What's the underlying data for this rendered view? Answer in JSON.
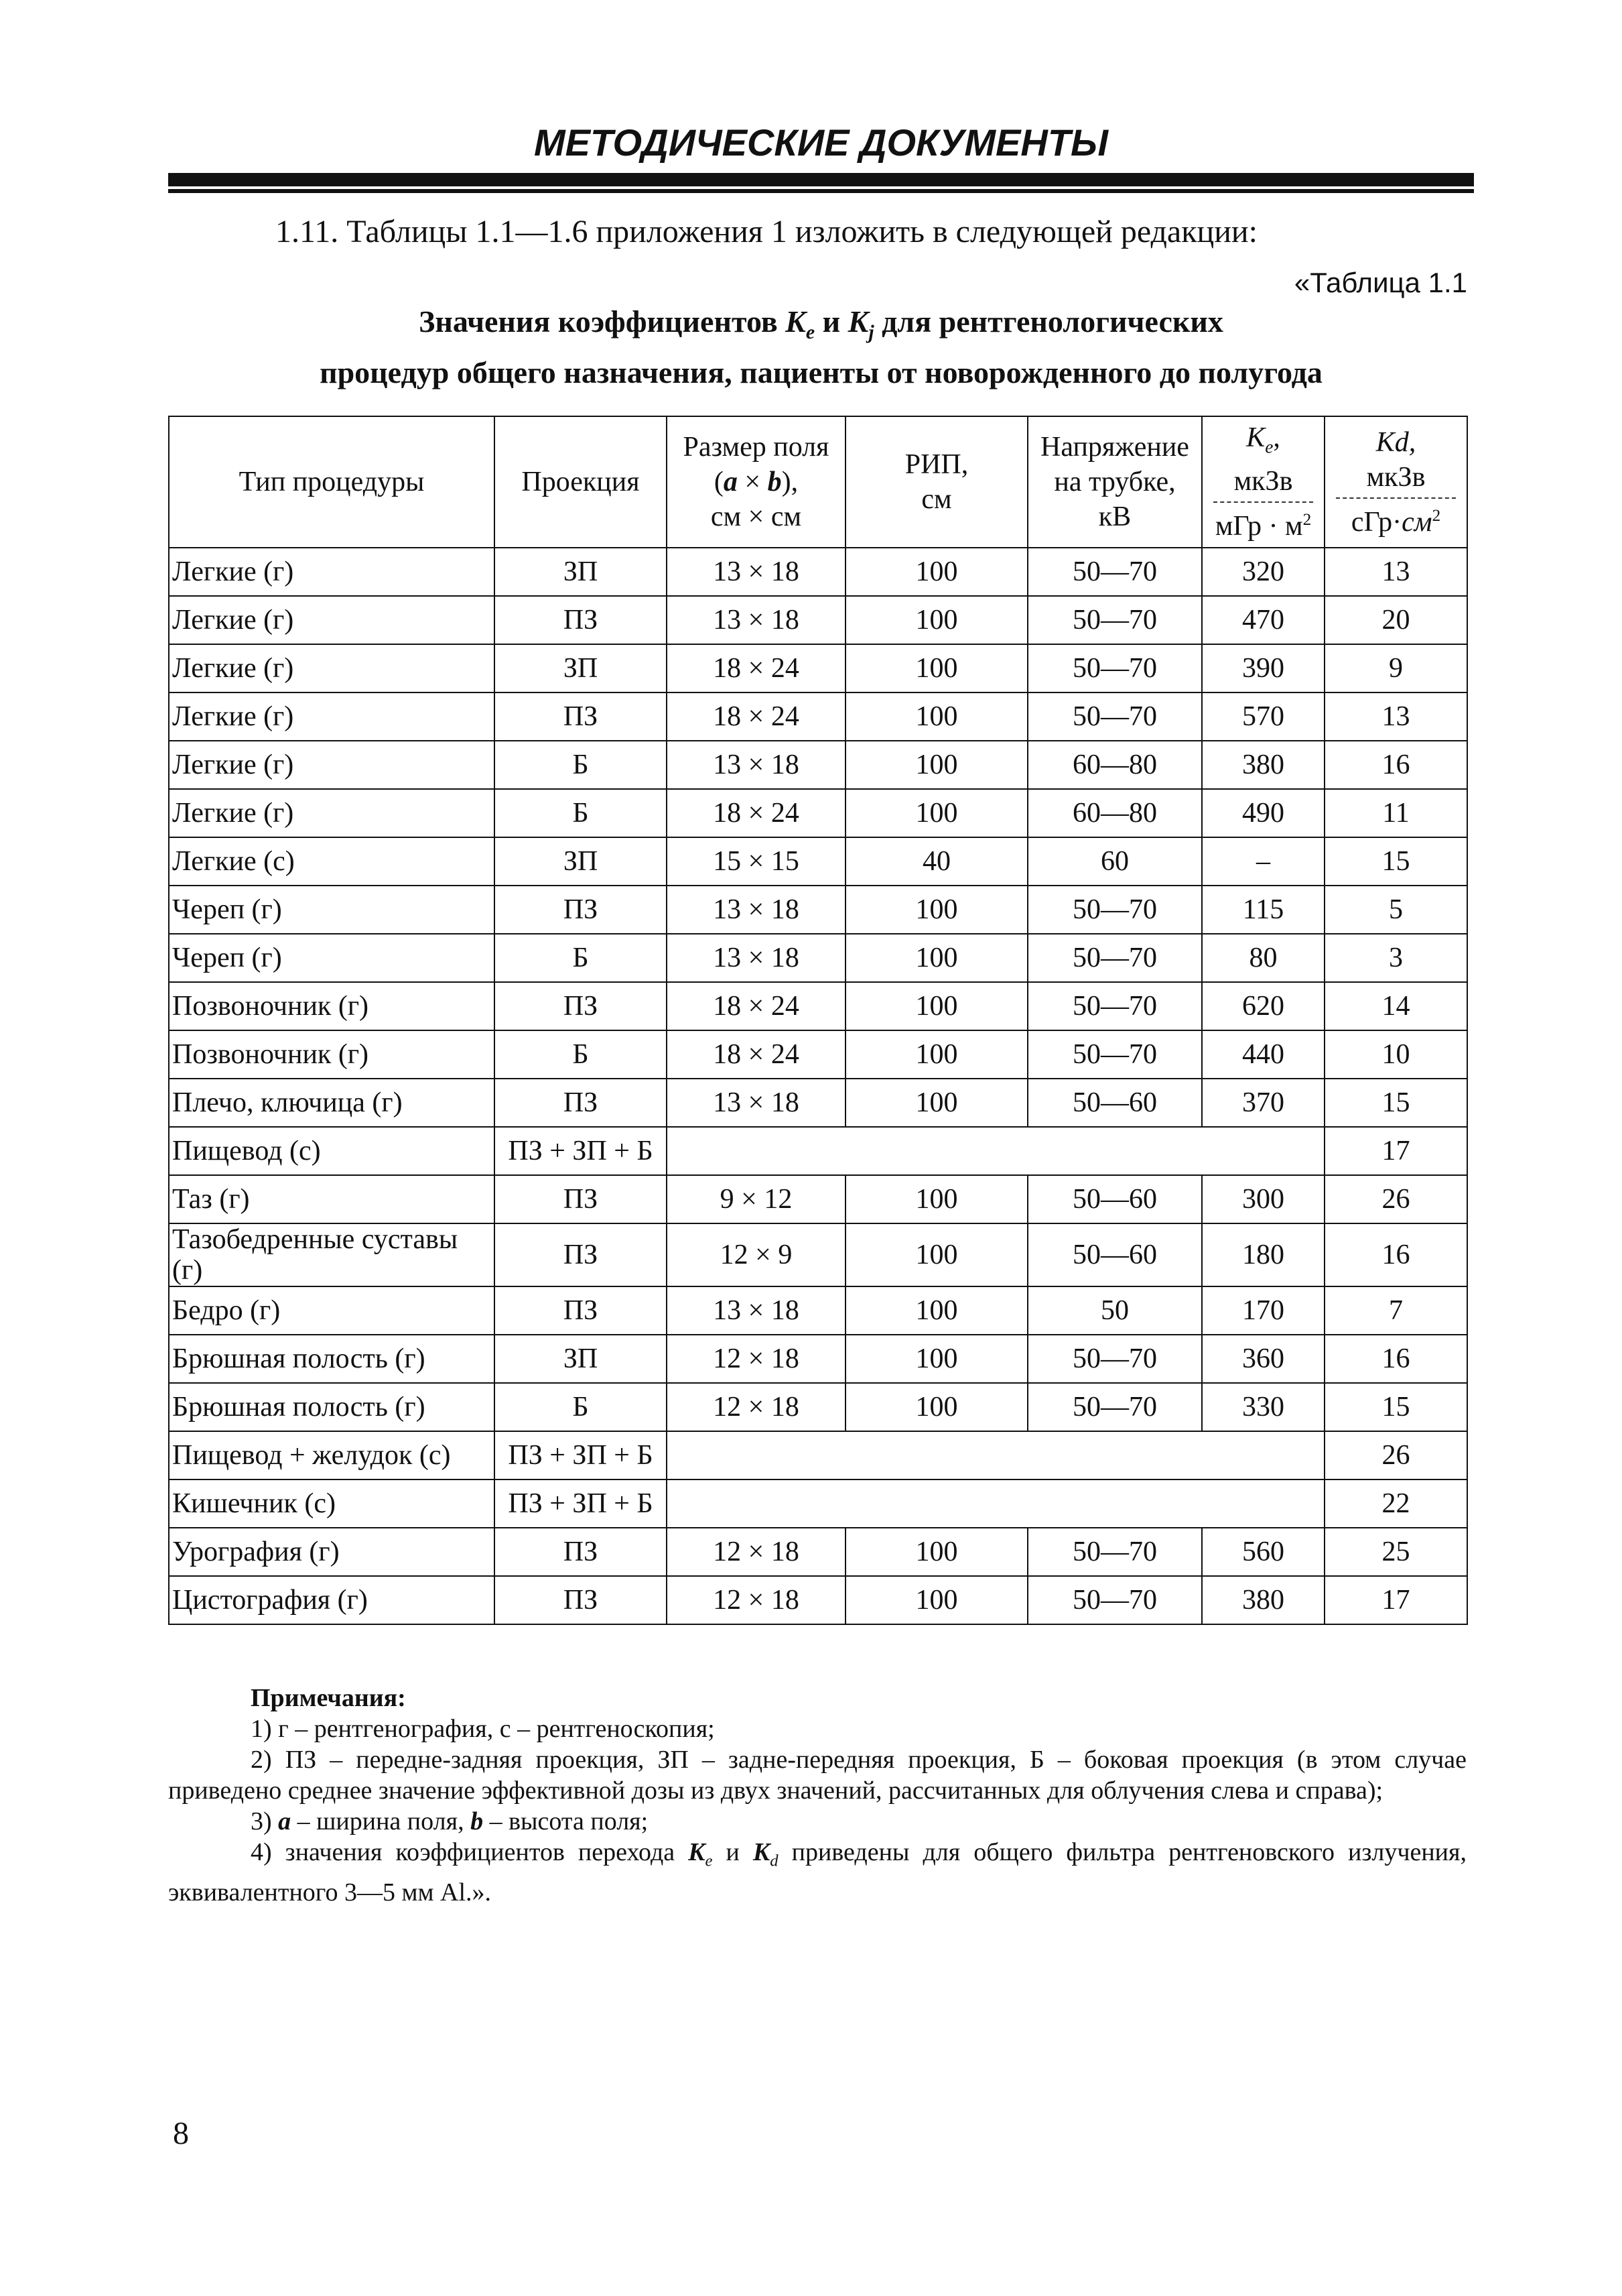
{
  "header": {
    "title": "МЕТОДИЧЕСКИЕ ДОКУМЕНТЫ"
  },
  "intro": "1.11. Таблицы 1.1—1.6 приложения 1 изложить в следующей редакции:",
  "table_label": "«Таблица 1.1",
  "table_title": [
    [
      "Значения коэффициентов ",
      {
        "t": "K",
        "s": "bi"
      },
      {
        "t": "e",
        "s": "sub"
      },
      " и ",
      {
        "t": "K",
        "s": "bi"
      },
      {
        "t": "j",
        "s": "sub"
      },
      " для рентгенологических"
    ],
    [
      "процедур общего назначения, пациенты от новорожденного до полугода"
    ]
  ],
  "table": {
    "columns": [
      {
        "lines": [
          [
            "Тип процедуры"
          ]
        ]
      },
      {
        "lines": [
          [
            "Проекция"
          ]
        ]
      },
      {
        "lines": [
          [
            "Размер поля"
          ],
          [
            "(",
            {
              "t": "a",
              "s": "bi"
            },
            " × ",
            {
              "t": "b",
              "s": "bi"
            },
            "),"
          ],
          [
            "см × см"
          ]
        ]
      },
      {
        "lines": [
          [
            "РИП,"
          ],
          [
            "см"
          ]
        ]
      },
      {
        "lines": [
          [
            "Напряжение"
          ],
          [
            "на трубке,"
          ],
          [
            "кВ"
          ]
        ]
      },
      {
        "lines": [
          [
            {
              "t": "K",
              "s": "i"
            },
            {
              "t": "e",
              "s": "sub"
            },
            ","
          ],
          [
            "мкЗв"
          ]
        ],
        "denominator": [
          "мГр · м",
          {
            "t": "2",
            "s": "sup"
          }
        ]
      },
      {
        "lines": [
          [
            {
              "t": "Kd,",
              "s": "i"
            }
          ],
          [
            "мкЗв"
          ]
        ],
        "denominator": [
          "сГр·",
          {
            "t": "см",
            "s": "i"
          },
          {
            "t": "2",
            "s": "sup"
          }
        ]
      }
    ],
    "rows": [
      [
        "Легкие (г)",
        "ЗП",
        "13 × 18",
        "100",
        "50—70",
        "320",
        "13"
      ],
      [
        "Легкие (г)",
        "ПЗ",
        "13 × 18",
        "100",
        "50—70",
        "470",
        "20"
      ],
      [
        "Легкие (г)",
        "ЗП",
        "18 × 24",
        "100",
        "50—70",
        "390",
        "9"
      ],
      [
        "Легкие (г)",
        "ПЗ",
        "18 × 24",
        "100",
        "50—70",
        "570",
        "13"
      ],
      [
        "Легкие (г)",
        "Б",
        "13 × 18",
        "100",
        "60—80",
        "380",
        "16"
      ],
      [
        "Легкие (г)",
        "Б",
        "18 × 24",
        "100",
        "60—80",
        "490",
        "11"
      ],
      [
        "Легкие (с)",
        "ЗП",
        "15 × 15",
        "40",
        "60",
        "–",
        "15"
      ],
      [
        "Череп (г)",
        "ПЗ",
        "13 × 18",
        "100",
        "50—70",
        "115",
        "5"
      ],
      [
        "Череп (г)",
        "Б",
        "13 × 18",
        "100",
        "50—70",
        "80",
        "3"
      ],
      [
        "Позвоночник (г)",
        "ПЗ",
        "18 × 24",
        "100",
        "50—70",
        "620",
        "14"
      ],
      [
        "Позвоночник (г)",
        "Б",
        "18 × 24",
        "100",
        "50—70",
        "440",
        "10"
      ],
      [
        "Плечо, ключица (г)",
        "ПЗ",
        "13 × 18",
        "100",
        "50—60",
        "370",
        "15"
      ],
      [
        "Пищевод (с)",
        "ПЗ + ЗП + Б",
        null,
        null,
        null,
        null,
        "17"
      ],
      [
        "Таз (г)",
        "ПЗ",
        "9 × 12",
        "100",
        "50—60",
        "300",
        "26"
      ],
      [
        "Тазобедренные суставы (г)",
        "ПЗ",
        "12 × 9",
        "100",
        "50—60",
        "180",
        "16"
      ],
      [
        "Бедро (г)",
        "ПЗ",
        "13 × 18",
        "100",
        "50",
        "170",
        "7"
      ],
      [
        "Брюшная полость (г)",
        "ЗП",
        "12 × 18",
        "100",
        "50—70",
        "360",
        "16"
      ],
      [
        "Брюшная полость (г)",
        "Б",
        "12 × 18",
        "100",
        "50—70",
        "330",
        "15"
      ],
      [
        "Пищевод + желудок (с)",
        "ПЗ + ЗП + Б",
        null,
        null,
        null,
        null,
        "26"
      ],
      [
        "Кишечник (с)",
        "ПЗ + ЗП + Б",
        null,
        null,
        null,
        null,
        "22"
      ],
      [
        "Урография (г)",
        "ПЗ",
        "12 × 18",
        "100",
        "50—70",
        "560",
        "25"
      ],
      [
        "Цистография (г)",
        "ПЗ",
        "12 × 18",
        "100",
        "50—70",
        "380",
        "17"
      ]
    ]
  },
  "notes": {
    "heading": "Примечания:",
    "items": [
      [
        "1) г – рентгенография, с – рентгеноскопия;"
      ],
      [
        "2) ПЗ – передне-задняя проекция, ЗП – задне-передняя проекция, Б – боковая проекция (в этом случае приведено среднее значение эффективной дозы из двух значений, рассчитанных для облучения слева и справа);"
      ],
      [
        "3) ",
        {
          "t": "a",
          "s": "bi"
        },
        " – ширина поля, ",
        {
          "t": "b",
          "s": "bi"
        },
        " – высота поля;"
      ],
      [
        "4) значения коэффициентов перехода ",
        {
          "t": "K",
          "s": "bi"
        },
        {
          "t": "e",
          "s": "sub"
        },
        " и ",
        {
          "t": "K",
          "s": "bi"
        },
        {
          "t": "d",
          "s": "sub"
        },
        " приведены для общего фильтра рентгеновского излучения, эквивалентного 3—5 мм Al.»."
      ]
    ]
  },
  "page_number": "8"
}
